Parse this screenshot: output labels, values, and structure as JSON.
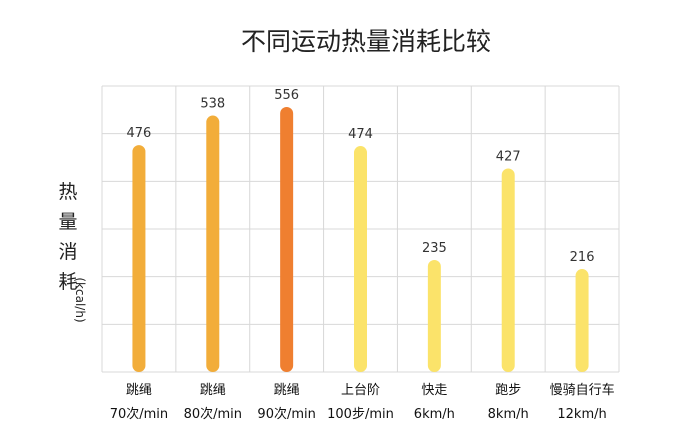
{
  "chart_data": {
    "type": "bar",
    "title": "不同运动热量消耗比较",
    "ylabel": "热量消耗",
    "ylabel_unit": "(kcal/h)",
    "categories": [
      [
        "跳绳",
        "70次/min"
      ],
      [
        "跳绳",
        "80次/min"
      ],
      [
        "跳绳",
        "90次/min"
      ],
      [
        "上台阶",
        "100步/min"
      ],
      [
        "快走",
        "6km/h"
      ],
      [
        "跑步",
        "8km/h"
      ],
      [
        "慢骑自行车",
        "12km/h"
      ]
    ],
    "values": [
      476,
      538,
      556,
      474,
      235,
      427,
      216
    ],
    "colors": [
      "#f2ad3a",
      "#f2ad3a",
      "#ef7f30",
      "#fbe36a",
      "#fbe36a",
      "#fbe36a",
      "#fbe36a"
    ],
    "ylim": [
      0,
      600
    ],
    "grid": true
  }
}
